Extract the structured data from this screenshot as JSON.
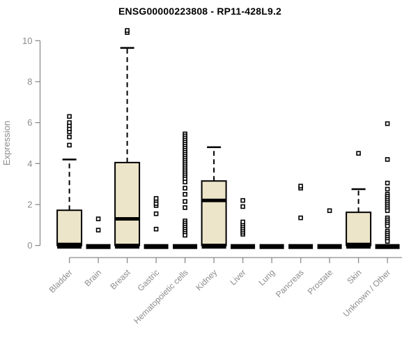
{
  "chart_data": {
    "type": "boxplot",
    "title": "ENSG00000223808 - RP11-428L9.2",
    "ylabel": "Expression",
    "xlabel": "",
    "ylim": [
      0,
      10
    ],
    "yticks": [
      0,
      2,
      4,
      6,
      8,
      10
    ],
    "grid": "off",
    "legend": "none",
    "categories": [
      "Bladder",
      "Brain",
      "Breast",
      "Gastric",
      "Hematopoietic cells",
      "Kidney",
      "Liver",
      "Lung",
      "Pancreas",
      "Prostate",
      "Skin",
      "Unknown / Other"
    ],
    "series": [
      {
        "name": "Bladder",
        "q1": 0,
        "median": 0.05,
        "q3": 1.72,
        "whisker_low": 0,
        "whisker_high": 4.2,
        "outliers": [
          4.9,
          5.3,
          5.55,
          5.7,
          5.85,
          6.0,
          6.3
        ]
      },
      {
        "name": "Brain",
        "q1": 0,
        "median": 0,
        "q3": 0,
        "whisker_low": 0,
        "whisker_high": 0,
        "outliers": [
          0.75,
          1.3
        ]
      },
      {
        "name": "Breast",
        "q1": 0,
        "median": 1.3,
        "q3": 4.05,
        "whisker_low": 0,
        "whisker_high": 9.65,
        "outliers": [
          10.4,
          10.5
        ]
      },
      {
        "name": "Gastric",
        "q1": 0,
        "median": 0,
        "q3": 0,
        "whisker_low": 0,
        "whisker_high": 0,
        "outliers": [
          0.8,
          1.55,
          1.95,
          2.05,
          2.2,
          2.3
        ]
      },
      {
        "name": "Hematopoietic cells",
        "q1": 0,
        "median": 0,
        "q3": 0,
        "whisker_low": 0,
        "whisker_high": 0,
        "outliers": [
          5.45,
          5.35,
          5.25,
          5.15,
          5.05,
          4.95,
          4.85,
          4.75,
          4.65,
          4.55,
          4.45,
          4.35,
          4.25,
          4.15,
          4.05,
          3.95,
          3.85,
          3.75,
          3.65,
          3.55,
          3.45,
          3.35,
          3.25,
          3.1,
          2.8,
          2.5,
          2.15,
          1.85,
          1.2,
          1.1,
          1.0,
          0.9,
          0.8,
          0.7,
          0.6,
          0.5
        ]
      },
      {
        "name": "Kidney",
        "q1": 0,
        "median": 2.2,
        "q3": 3.15,
        "whisker_low": 0,
        "whisker_high": 4.8,
        "outliers": []
      },
      {
        "name": "Liver",
        "q1": 0,
        "median": 0,
        "q3": 0,
        "whisker_low": 0,
        "whisker_high": 0,
        "outliers": [
          0.55,
          0.65,
          0.75,
          0.85,
          0.95,
          1.05,
          1.15,
          1.9,
          2.2
        ]
      },
      {
        "name": "Lung",
        "q1": 0,
        "median": 0,
        "q3": 0,
        "whisker_low": 0,
        "whisker_high": 0,
        "outliers": []
      },
      {
        "name": "Pancreas",
        "q1": 0,
        "median": 0,
        "q3": 0,
        "whisker_low": 0,
        "whisker_high": 0,
        "outliers": [
          1.35,
          2.8,
          2.9
        ]
      },
      {
        "name": "Prostate",
        "q1": 0,
        "median": 0,
        "q3": 0,
        "whisker_low": 0,
        "whisker_high": 0,
        "outliers": [
          1.7
        ]
      },
      {
        "name": "Skin",
        "q1": 0,
        "median": 0.05,
        "q3": 1.62,
        "whisker_low": 0,
        "whisker_high": 2.75,
        "outliers": [
          4.5
        ]
      },
      {
        "name": "Unknown / Other",
        "q1": 0,
        "median": 0,
        "q3": 0,
        "whisker_low": 0,
        "whisker_high": 0,
        "outliers": [
          5.95,
          4.2,
          3.05,
          2.75,
          2.5,
          2.4,
          2.3,
          2.2,
          2.1,
          2.0,
          1.9,
          1.8,
          1.7,
          1.35,
          1.25,
          1.15,
          1.05,
          0.95,
          0.7,
          0.6,
          0.5,
          0.4,
          0.3,
          0.2
        ]
      }
    ],
    "style": {
      "box_fill": "#ECE5C9",
      "box_stroke": "#000000",
      "median_color": "#000000",
      "outlier_stroke": "#000000",
      "outlier_fill": "#FFFFFF",
      "axis_color": "#8C8C8C",
      "label_color": "#8C8C8C",
      "title_color": "#000000",
      "background": "#FFFFFF"
    }
  }
}
